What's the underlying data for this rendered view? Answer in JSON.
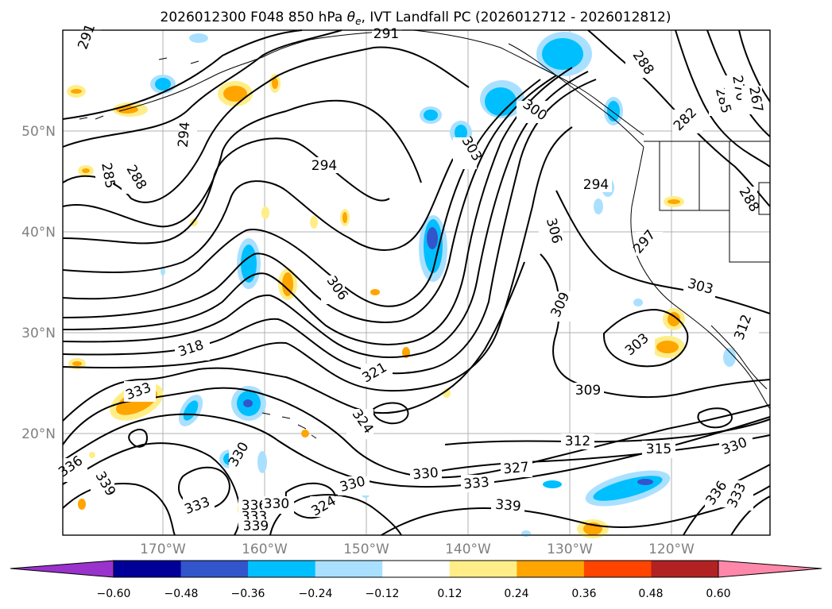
{
  "title": "2026012300 F048 850 hPa θe, IVT Landfall PC (2026012712 - 2026012812)",
  "latitude_labels": [
    "50°N",
    "40°N",
    "30°N",
    "20°N"
  ],
  "longitude_labels": [
    "170°W",
    "160°W",
    "150°W",
    "140°W",
    "130°W",
    "120°W"
  ],
  "contour_labels": [
    "291",
    "291",
    "294",
    "294",
    "285",
    "288",
    "294",
    "300",
    "303",
    "288",
    "282",
    "285",
    "270",
    "267",
    "288",
    "297",
    "303",
    "306",
    "306",
    "309",
    "303",
    "312",
    "318",
    "321",
    "324",
    "330",
    "333",
    "336",
    "339",
    "330",
    "330",
    "327",
    "309",
    "312",
    "315",
    "330",
    "336",
    "333",
    "339",
    "333",
    "333",
    "336",
    "324",
    "330",
    "333",
    "339"
  ],
  "colorbar": {
    "ticks": [
      "−0.60",
      "−0.48",
      "−0.36",
      "−0.24",
      "−0.12",
      "0.12",
      "0.24",
      "0.36",
      "0.48",
      "0.60"
    ],
    "colors": {
      "extend_low": "#9933cc",
      "bins": [
        "#000099",
        "#3355cc",
        "#00bfff",
        "#aae0ff",
        "#ffffff",
        "#ffee88",
        "#ffa500",
        "#ff4400",
        "#b22222"
      ],
      "extend_high": "#ff88aa"
    }
  },
  "shading_colors": {
    "neg_light": "#aae0ff",
    "neg_mid": "#00bfff",
    "neg_dark": "#3355cc",
    "neg_darkest": "#000099",
    "neg_extreme": "#9933cc",
    "pos_light": "#ffee88",
    "pos_mid": "#ffa500",
    "pos_dark": "#ff4400"
  }
}
